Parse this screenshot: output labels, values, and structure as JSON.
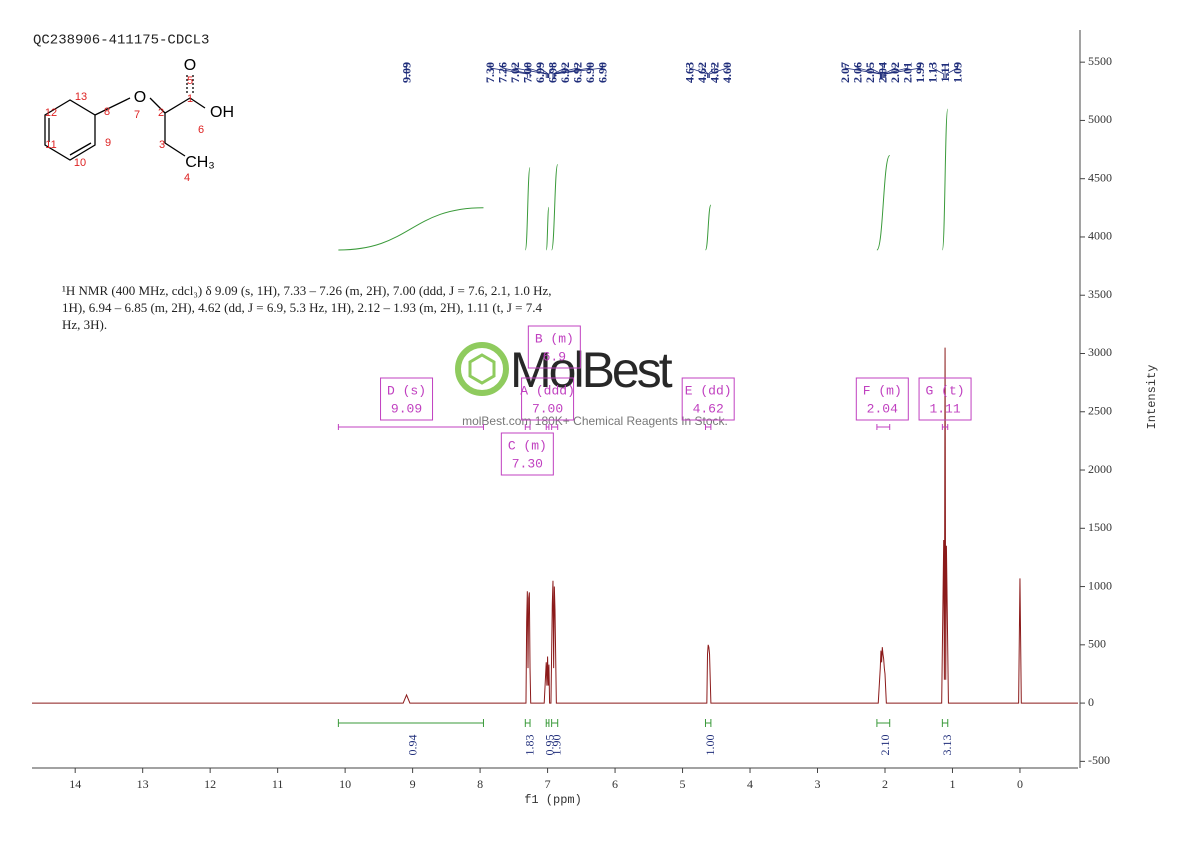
{
  "chart_data": {
    "type": "line",
    "title": "QC238906-411175-CDCL3",
    "description": [
      "¹H NMR (400 MHz, cdcl₃) δ 9.09 (s, 1H), 7.33 – 7.26 (m, 2H), 7.00 (ddd, J = 7.6, 2.1, 1.0 Hz,",
      "1H), 6.94 – 6.85 (m, 2H), 4.62 (dd, J = 6.9, 5.3 Hz, 1H), 2.12 – 1.93 (m, 2H), 1.11 (t, J = 7.4",
      "Hz, 3H)."
    ],
    "x_label": "f1 (ppm)",
    "y_label": "Intensity",
    "watermark": {
      "brand": "MolBest",
      "tagline": "molBest.com 180K+ Chemical Reagents In Stock."
    },
    "molecule": {
      "atoms": [
        "O",
        "O",
        "OH",
        "CH₃"
      ],
      "numbers": [
        1,
        2,
        3,
        4,
        5,
        6,
        7,
        8,
        9,
        10,
        11,
        12,
        13
      ]
    },
    "xlim": [
      14.64,
      -0.86
    ],
    "xticks": [
      14,
      13,
      12,
      11,
      10,
      9,
      8,
      7,
      6,
      5,
      4,
      3,
      2,
      1,
      0
    ],
    "ylim": [
      -557,
      5776
    ],
    "yticks": [
      -500,
      0,
      500,
      1000,
      1500,
      2000,
      2500,
      3000,
      3500,
      4000,
      4500,
      5000,
      5500
    ],
    "x": [
      14.64,
      9.14,
      9.09,
      9.04,
      7.36,
      7.32,
      7.31,
      7.3,
      7.29,
      7.28,
      7.27,
      7.26,
      7.25,
      7.05,
      7.02,
      7.01,
      7.0,
      6.99,
      6.98,
      6.97,
      6.95,
      6.93,
      6.92,
      6.91,
      6.9,
      6.89,
      6.87,
      4.66,
      4.64,
      4.63,
      4.62,
      4.61,
      4.6,
      4.58,
      2.1,
      2.07,
      2.06,
      2.05,
      2.04,
      2.03,
      2.02,
      2.01,
      2.0,
      1.98,
      1.16,
      1.13,
      1.12,
      1.11,
      1.1,
      1.09,
      1.06,
      0.02,
      0,
      -0.02,
      -0.86
    ],
    "series": [
      {
        "color": "#8b1a1a",
        "values": [
          0,
          0,
          70,
          0,
          0,
          0,
          700,
          960,
          300,
          900,
          950,
          300,
          0,
          0,
          350,
          150,
          400,
          150,
          330,
          0,
          0,
          850,
          1050,
          300,
          1000,
          800,
          0,
          0,
          0,
          420,
          500,
          480,
          420,
          0,
          0,
          300,
          450,
          350,
          480,
          420,
          380,
          300,
          250,
          0,
          0,
          1400,
          200,
          3050,
          200,
          1350,
          0,
          0,
          1070,
          0,
          0
        ]
      }
    ],
    "peak_labels": [
      {
        "value": 9.09,
        "label": "9.09"
      },
      {
        "value": 7.3,
        "label": "7.30"
      },
      {
        "value": 7.26,
        "label": "7.26"
      },
      {
        "value": 7.02,
        "label": "7.02"
      },
      {
        "value": 7.0,
        "label": "7.00"
      },
      {
        "value": 6.99,
        "label": "6.99"
      },
      {
        "value": 6.98,
        "label": "6.98"
      },
      {
        "value": 6.92,
        "label": "6.92"
      },
      {
        "value": 6.92,
        "label": "6.92"
      },
      {
        "value": 6.9,
        "label": "6.90"
      },
      {
        "value": 6.9,
        "label": "6.90"
      },
      {
        "value": 4.63,
        "label": "4.63"
      },
      {
        "value": 4.62,
        "label": "4.62"
      },
      {
        "value": 4.62,
        "label": "4.62"
      },
      {
        "value": 4.6,
        "label": "4.60"
      },
      {
        "value": 2.07,
        "label": "2.07"
      },
      {
        "value": 2.06,
        "label": "2.06"
      },
      {
        "value": 2.05,
        "label": "2.05"
      },
      {
        "value": 2.04,
        "label": "2.04"
      },
      {
        "value": 2.02,
        "label": "2.02"
      },
      {
        "value": 2.01,
        "label": "2.01"
      },
      {
        "value": 1.99,
        "label": "1.99"
      },
      {
        "value": 1.13,
        "label": "1.13"
      },
      {
        "value": 1.11,
        "label": "1.11"
      },
      {
        "value": 1.09,
        "label": "1.09"
      }
    ],
    "multiplets": [
      {
        "label": "D (s)",
        "shift": 9.09,
        "shift_label": "9.09",
        "range": [
          10.1,
          7.95
        ]
      },
      {
        "label": "B (m)",
        "shift": 6.9,
        "shift_label": "6.9",
        "range": [
          6.94,
          6.85
        ]
      },
      {
        "label": "A (ddd)",
        "shift": 7.0,
        "shift_label": "7.00",
        "range": [
          7.02,
          6.98
        ]
      },
      {
        "label": "C (m)",
        "shift": 7.3,
        "shift_label": "7.30",
        "range": [
          7.33,
          7.26
        ]
      },
      {
        "label": "E (dd)",
        "shift": 4.62,
        "shift_label": "4.62",
        "range": [
          4.66,
          4.58
        ]
      },
      {
        "label": "F (m)",
        "shift": 2.04,
        "shift_label": "2.04",
        "range": [
          2.12,
          1.93
        ]
      },
      {
        "label": "G (t)",
        "shift": 1.11,
        "shift_label": "1.11",
        "range": [
          1.15,
          1.07
        ]
      }
    ],
    "integrals": [
      {
        "range": [
          10.1,
          7.95
        ],
        "value": 0.94,
        "label": "0.94"
      },
      {
        "range": [
          7.33,
          7.26
        ],
        "value": 1.83,
        "label": "1.83"
      },
      {
        "range": [
          7.02,
          6.98
        ],
        "value": 0.95,
        "label": "0.95"
      },
      {
        "range": [
          6.94,
          6.85
        ],
        "value": 1.9,
        "label": "1.90"
      },
      {
        "range": [
          4.66,
          4.58
        ],
        "value": 1.0,
        "label": "1.00"
      },
      {
        "range": [
          2.12,
          1.93
        ],
        "value": 2.1,
        "label": "2.10"
      },
      {
        "range": [
          1.15,
          1.07
        ],
        "value": 3.13,
        "label": "3.13"
      }
    ],
    "integral_color": "#3a9a3a",
    "label_color": "#1f2d7a",
    "box_color": "#c040c0"
  }
}
